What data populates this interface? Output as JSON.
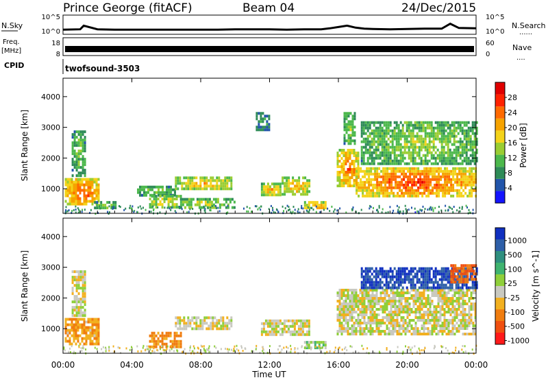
{
  "header": {
    "station": "Prince George (fitACF)",
    "beam": "Beam 04",
    "date": "24/Dec/2015"
  },
  "strip_labels": {
    "nsky": "N.Sky",
    "nsearch": "N.Search",
    "freq": "Freq.",
    "freq_unit": "[MHz]",
    "nave": "Nave",
    "cpid": "CPID",
    "noise_ticks_top": "10^5",
    "noise_ticks_bottom": "10^0",
    "freq_ticks": [
      "18",
      "8"
    ],
    "nave_ticks": [
      "60",
      "0"
    ],
    "dots": "......",
    "nave_dots": "...."
  },
  "program": {
    "name": "twofsound",
    "cpid": "-3503"
  },
  "xaxis": {
    "label": "Time UT",
    "ticks": [
      "00:00",
      "04:00",
      "08:00",
      "12:00",
      "16:00",
      "20:00",
      "00:00"
    ]
  },
  "colors": {
    "power": [
      "#1414ff",
      "#2255aa",
      "#2e8b57",
      "#4cb84c",
      "#9acd32",
      "#f4d31a",
      "#f6a300",
      "#ff6a00",
      "#ff2200",
      "#e00000"
    ],
    "velocity": [
      "#1030c0",
      "#2e5fa8",
      "#2f8f7f",
      "#3fb36f",
      "#8fcf3a",
      "#c9c9c0",
      "#f2b020",
      "#f07d10",
      "#f05010",
      "#ff1a1a"
    ]
  },
  "chart_data": [
    {
      "type": "line",
      "name": "noise-strip",
      "ylabel": "N.Sky",
      "ylabel_right": "N.Search",
      "ylim": [
        0,
        5
      ],
      "xlim": [
        0,
        24
      ],
      "x": [
        0,
        1,
        1.2,
        2,
        3,
        4,
        5,
        6,
        7,
        8,
        9,
        10,
        11,
        12,
        13,
        14,
        15,
        15.5,
        16,
        16.5,
        17,
        17.5,
        18,
        19,
        20,
        21,
        22,
        22.5,
        23,
        24
      ],
      "values": [
        1.0,
        1.1,
        2.2,
        1.1,
        1.0,
        1.0,
        1.0,
        1.0,
        1.0,
        1.0,
        1.0,
        1.1,
        1.1,
        1.1,
        1.0,
        1.1,
        1.1,
        1.4,
        1.8,
        2.2,
        1.6,
        1.3,
        1.2,
        1.1,
        1.2,
        1.3,
        1.3,
        2.8,
        1.5,
        1.4
      ]
    },
    {
      "type": "bar",
      "name": "freq-nave-strip",
      "ylabel": "Freq. [MHz]",
      "ylabel_right": "Nave",
      "ylim": [
        8,
        18
      ],
      "xlim": [
        0,
        24
      ],
      "values_range": [
        11,
        13
      ]
    },
    {
      "type": "heatmap",
      "name": "power-panel",
      "title": "",
      "xlabel": "",
      "ylabel": "Slant Range [km]",
      "xlim": [
        0,
        24
      ],
      "ylim": [
        200,
        4600
      ],
      "yticks": [
        "1000",
        "2000",
        "3000",
        "4000"
      ],
      "colorbar": {
        "label": "Power [dB]",
        "ticks": [
          "4",
          "8",
          "12",
          "16",
          "20",
          "24",
          "28"
        ],
        "range": [
          0,
          30
        ]
      },
      "blobs": [
        {
          "t0": 0.1,
          "t1": 2.1,
          "r0": 500,
          "r1": 1350,
          "level": 26
        },
        {
          "t0": 0.5,
          "t1": 1.3,
          "r0": 1400,
          "r1": 2900,
          "level": 12
        },
        {
          "t0": 1.8,
          "t1": 3.0,
          "r0": 400,
          "r1": 600,
          "level": 14
        },
        {
          "t0": 4.3,
          "t1": 6.5,
          "r0": 800,
          "r1": 1100,
          "level": 12
        },
        {
          "t0": 5.0,
          "t1": 6.8,
          "r0": 400,
          "r1": 800,
          "level": 18
        },
        {
          "t0": 6.5,
          "t1": 9.8,
          "r0": 1000,
          "r1": 1400,
          "level": 20
        },
        {
          "t0": 6.8,
          "t1": 10.0,
          "r0": 400,
          "r1": 700,
          "level": 16
        },
        {
          "t0": 11.2,
          "t1": 12.0,
          "r0": 2900,
          "r1": 3500,
          "level": 8
        },
        {
          "t0": 11.5,
          "t1": 12.6,
          "r0": 800,
          "r1": 1200,
          "level": 20
        },
        {
          "t0": 12.7,
          "t1": 14.3,
          "r0": 800,
          "r1": 1400,
          "level": 20
        },
        {
          "t0": 14.0,
          "t1": 15.2,
          "r0": 350,
          "r1": 600,
          "level": 24
        },
        {
          "t0": 15.9,
          "t1": 17.2,
          "r0": 1100,
          "r1": 2300,
          "level": 24
        },
        {
          "t0": 16.3,
          "t1": 16.9,
          "r0": 2500,
          "r1": 3500,
          "level": 14
        },
        {
          "t0": 17.0,
          "t1": 24.0,
          "r0": 800,
          "r1": 1700,
          "level": 27
        },
        {
          "t0": 17.3,
          "t1": 24.0,
          "r0": 1800,
          "r1": 3200,
          "level": 14
        }
      ]
    },
    {
      "type": "heatmap",
      "name": "velocity-panel",
      "title": "",
      "xlabel": "Time UT",
      "ylabel": "Slant Range [km]",
      "xlim": [
        0,
        24
      ],
      "ylim": [
        200,
        4600
      ],
      "yticks": [
        "1000",
        "2000",
        "3000",
        "4000"
      ],
      "colorbar": {
        "label": "Velocity [m s^-1]",
        "ticks": [
          "1000",
          "500",
          "100",
          "25",
          "-25",
          "-100",
          "-500",
          "-1000"
        ]
      },
      "blobs": [
        {
          "t0": 0.1,
          "t1": 2.1,
          "r0": 500,
          "r1": 1350,
          "v": -80
        },
        {
          "t0": 0.5,
          "t1": 1.3,
          "r0": 1400,
          "r1": 2900,
          "v": 0
        },
        {
          "t0": 5.0,
          "t1": 6.8,
          "r0": 400,
          "r1": 900,
          "v": -120
        },
        {
          "t0": 6.5,
          "t1": 9.8,
          "r0": 1000,
          "r1": 1400,
          "v": 0
        },
        {
          "t0": 11.5,
          "t1": 14.3,
          "r0": 800,
          "r1": 1300,
          "v": 0
        },
        {
          "t0": 14.0,
          "t1": 15.2,
          "r0": 350,
          "r1": 600,
          "v": 60
        },
        {
          "t0": 15.9,
          "t1": 24.0,
          "r0": 800,
          "r1": 2300,
          "v": 0
        },
        {
          "t0": 17.3,
          "t1": 24.0,
          "r0": 2300,
          "r1": 3000,
          "v": 700
        },
        {
          "t0": 22.5,
          "t1": 24.0,
          "r0": 2500,
          "r1": 3100,
          "v": -300
        }
      ]
    }
  ]
}
